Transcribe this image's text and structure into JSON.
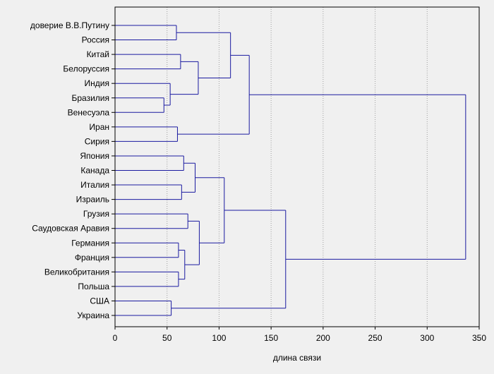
{
  "chart_data": {
    "type": "dendrogram",
    "xlabel": "длина связи",
    "xlim": [
      0,
      350
    ],
    "xticks": [
      0,
      50,
      100,
      150,
      200,
      250,
      300,
      350
    ],
    "grid": "vertical dashed",
    "colors": {
      "lines": "#1a1aa0",
      "background": "#f0f0f0",
      "grid": "#a0a0a0",
      "axes": "#000000"
    },
    "leaves": [
      "доверие В.В.Путину",
      "Россия",
      "Китай",
      "Белоруссия",
      "Индия",
      "Бразилия",
      "Венесуэла",
      "Иран",
      "Сирия",
      "Япония",
      "Канада",
      "Италия",
      "Израиль",
      "Грузия",
      "Саудовская Аравия",
      "Германия",
      "Франция",
      "Великобритания",
      "Польша",
      "США",
      "Украина"
    ],
    "merges": [
      {
        "id": "A",
        "children": [
          5,
          6
        ],
        "height": 47
      },
      {
        "id": "B",
        "children": [
          4,
          "A"
        ],
        "height": 53
      },
      {
        "id": "C",
        "children": [
          2,
          3
        ],
        "height": 63
      },
      {
        "id": "D",
        "children": [
          "C",
          "B"
        ],
        "height": 80
      },
      {
        "id": "E",
        "children": [
          0,
          1
        ],
        "height": 59
      },
      {
        "id": "F",
        "children": [
          "E",
          "D"
        ],
        "height": 111
      },
      {
        "id": "G",
        "children": [
          7,
          8
        ],
        "height": 60
      },
      {
        "id": "H",
        "children": [
          "F",
          "G"
        ],
        "height": 129
      },
      {
        "id": "I",
        "children": [
          9,
          10
        ],
        "height": 66
      },
      {
        "id": "J",
        "children": [
          11,
          12
        ],
        "height": 64
      },
      {
        "id": "K",
        "children": [
          "I",
          "J"
        ],
        "height": 77
      },
      {
        "id": "L",
        "children": [
          15,
          16
        ],
        "height": 61
      },
      {
        "id": "M",
        "children": [
          17,
          18
        ],
        "height": 61
      },
      {
        "id": "N",
        "children": [
          "L",
          "M"
        ],
        "height": 67
      },
      {
        "id": "O",
        "children": [
          13,
          14
        ],
        "height": 70
      },
      {
        "id": "P",
        "children": [
          "O",
          "N"
        ],
        "height": 81
      },
      {
        "id": "Q",
        "children": [
          "K",
          "P"
        ],
        "height": 105
      },
      {
        "id": "R",
        "children": [
          19,
          20
        ],
        "height": 54
      },
      {
        "id": "S",
        "children": [
          "Q",
          "R"
        ],
        "height": 164
      },
      {
        "id": "T",
        "children": [
          "H",
          "S"
        ],
        "height": 337
      }
    ]
  }
}
